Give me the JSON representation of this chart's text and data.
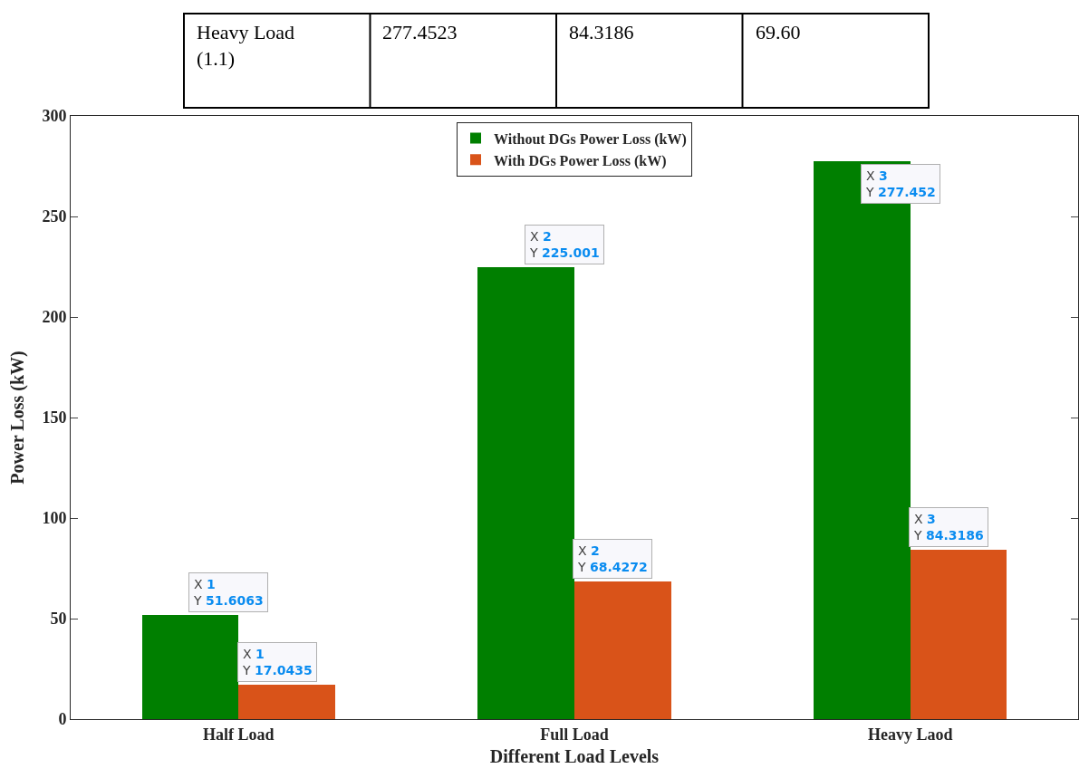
{
  "chart_data": {
    "type": "bar",
    "xlabel": "Different Load Levels",
    "ylabel": "Power Loss (kW)",
    "categories": [
      "Half Load",
      "Full Load",
      "Heavy Laod"
    ],
    "series": [
      {
        "name": "Without DGs Power Loss (kW)",
        "color": "#007f00",
        "values": [
          51.6063,
          225.001,
          277.452
        ]
      },
      {
        "name": "With DGs Power Loss (kW)",
        "color": "#d95319",
        "values": [
          17.0435,
          68.4272,
          84.3186
        ]
      }
    ],
    "ylim": [
      0,
      300
    ],
    "yticks": [
      0,
      50,
      100,
      150,
      200,
      250,
      300
    ],
    "grid": false,
    "legend": "top",
    "annotations": [
      "Heavy Load\n(1.1)",
      "277.4523",
      "84.3186",
      "69.60",
      {
        "text": "X 1\nY 51.6063",
        "x": "Half Load",
        "y": 51.6063
      },
      {
        "text": "X 1\nY 17.0435",
        "x": "Half Load",
        "y": 17.0435
      },
      {
        "text": "X 2\nY 225.001",
        "x": "Full Load",
        "y": 225.001
      },
      {
        "text": "X 2\nY 68.4272",
        "x": "Full Load",
        "y": 68.4272
      },
      {
        "text": "X 3\nY 277.452",
        "x": "Heavy Laod",
        "y": 277.452
      },
      {
        "text": "X 3\nY 84.3186",
        "x": "Heavy Laod",
        "y": 84.3186
      }
    ]
  }
}
